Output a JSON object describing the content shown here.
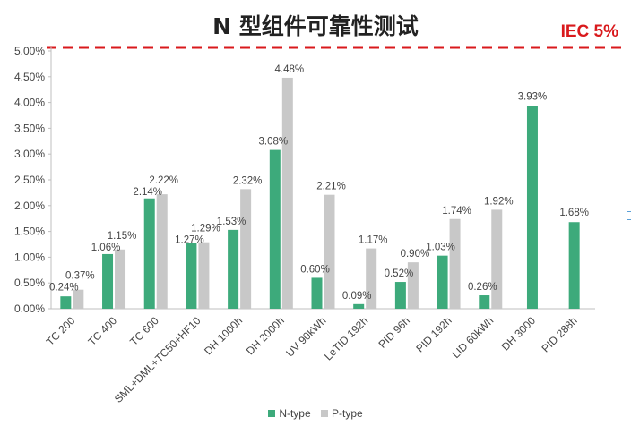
{
  "chart_data": {
    "type": "bar",
    "title": "N 型组件可靠性测试",
    "reference_line": {
      "label": "IEC 5%",
      "value": 5.0,
      "color": "#d9191c",
      "style": "dashed"
    },
    "categories": [
      "TC 200",
      "TC 400",
      "TC 600",
      "SML+DML+TC50+HF10",
      "DH 1000h",
      "DH 2000h",
      "UV 90kWh",
      "LeTID 192h",
      "PID 96h",
      "PID 192h",
      "LID 60kWh",
      "DH 3000",
      "PID 288h"
    ],
    "series": [
      {
        "name": "N-type",
        "color": "#3daa7b",
        "values": [
          0.24,
          1.06,
          2.14,
          1.27,
          1.53,
          3.08,
          0.6,
          0.09,
          0.52,
          1.03,
          0.26,
          3.93,
          1.68
        ],
        "labels": [
          "0.24%",
          "1.06%",
          "2.14%",
          "1.27%",
          "1.53%",
          "3.08%",
          "0.60%",
          "0.09%",
          "0.52%",
          "1.03%",
          "0.26%",
          "3.93%",
          "1.68%"
        ]
      },
      {
        "name": "P-type",
        "color": "#c8c8c8",
        "values": [
          0.37,
          1.15,
          2.22,
          1.29,
          2.32,
          4.48,
          2.21,
          1.17,
          0.9,
          1.74,
          1.92,
          null,
          null
        ],
        "labels": [
          "0.37%",
          "1.15%",
          "2.22%",
          "1.29%",
          "2.32%",
          "4.48%",
          "2.21%",
          "1.17%",
          "0.90%",
          "1.74%",
          "1.92%",
          "",
          ""
        ]
      }
    ],
    "y_ticks": [
      "0.00%",
      "0.50%",
      "1.00%",
      "1.50%",
      "2.00%",
      "2.50%",
      "3.00%",
      "3.50%",
      "4.00%",
      "4.50%",
      "5.00%"
    ],
    "ylim": [
      0,
      5.0
    ],
    "grid": false,
    "legend_position": "bottom"
  }
}
